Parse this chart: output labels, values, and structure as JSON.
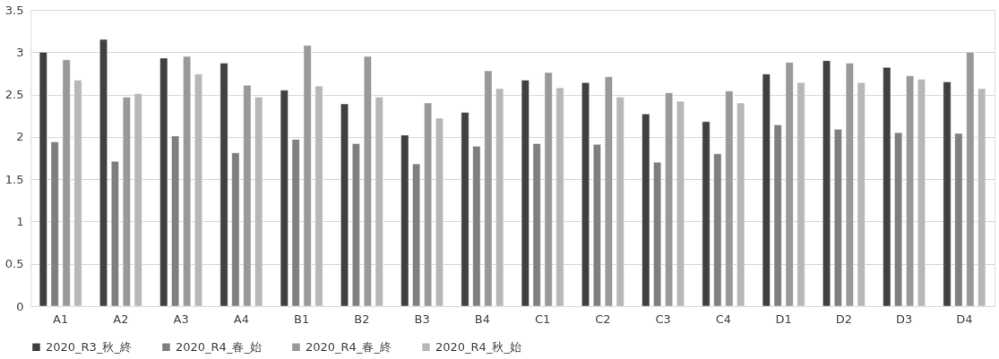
{
  "chart_data": {
    "type": "bar",
    "categories": [
      "A1",
      "A2",
      "A3",
      "A4",
      "B1",
      "B2",
      "B3",
      "B4",
      "C1",
      "C2",
      "C3",
      "C4",
      "D1",
      "D2",
      "D3",
      "D4"
    ],
    "series": [
      {
        "name": "2020_R3_秋_終",
        "color": "#404040",
        "values": [
          3.0,
          3.15,
          2.93,
          2.87,
          2.55,
          2.39,
          2.02,
          2.29,
          2.67,
          2.64,
          2.27,
          2.18,
          2.74,
          2.9,
          2.82,
          2.65
        ]
      },
      {
        "name": "2020_R4_春_始",
        "color": "#7f7f7f",
        "values": [
          1.94,
          1.71,
          2.01,
          1.81,
          1.97,
          1.92,
          1.68,
          1.89,
          1.92,
          1.91,
          1.7,
          1.8,
          2.14,
          2.09,
          2.05,
          2.04
        ]
      },
      {
        "name": "2020_R4_春_終",
        "color": "#999999",
        "values": [
          2.91,
          2.47,
          2.95,
          2.61,
          3.08,
          2.95,
          2.4,
          2.78,
          2.76,
          2.71,
          2.52,
          2.54,
          2.88,
          2.87,
          2.72,
          3.0
        ]
      },
      {
        "name": "2020_R4_秋_始",
        "color": "#b7b7b7",
        "values": [
          2.67,
          2.51,
          2.74,
          2.47,
          2.6,
          2.47,
          2.22,
          2.57,
          2.58,
          2.47,
          2.42,
          2.4,
          2.64,
          2.64,
          2.68,
          2.57
        ]
      }
    ],
    "ylim": [
      0,
      3.5
    ],
    "yticks": [
      0,
      0.5,
      1,
      1.5,
      2,
      2.5,
      3,
      3.5
    ],
    "grid": "y",
    "legend": "bottom"
  }
}
